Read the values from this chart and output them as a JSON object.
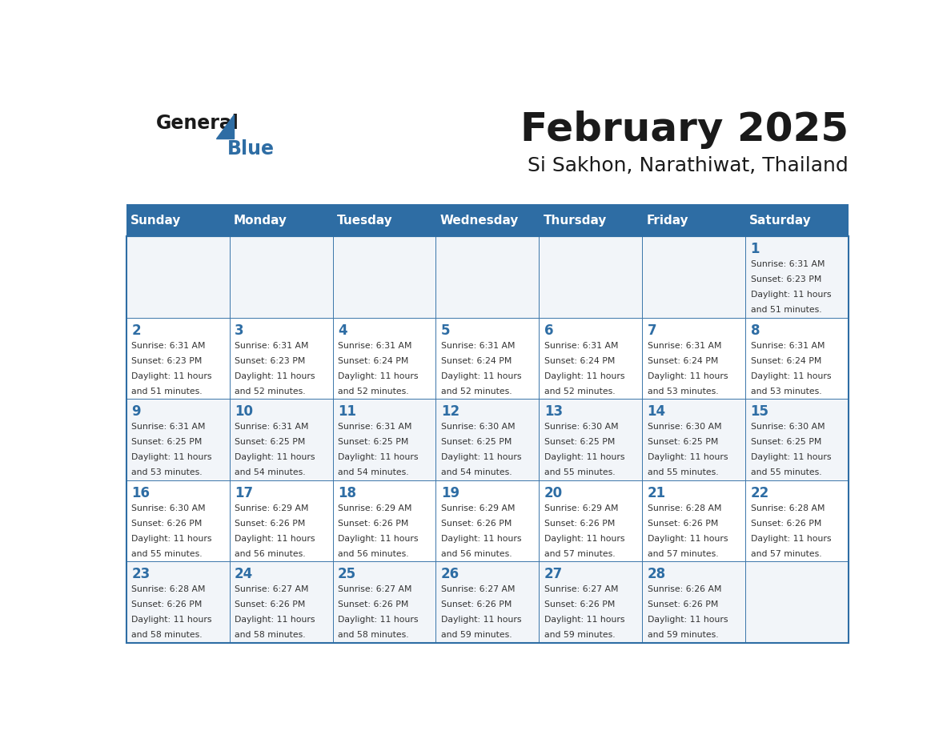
{
  "title": "February 2025",
  "subtitle": "Si Sakhon, Narathiwat, Thailand",
  "header_bg": "#2e6da4",
  "header_text": "#ffffff",
  "day_names": [
    "Sunday",
    "Monday",
    "Tuesday",
    "Wednesday",
    "Thursday",
    "Friday",
    "Saturday"
  ],
  "border_color": "#2e6da4",
  "title_color": "#1a1a1a",
  "subtitle_color": "#1a1a1a",
  "day_num_color": "#2e6da4",
  "cell_text_color": "#333333",
  "logo_general_color": "#1a1a1a",
  "logo_blue_color": "#2e6da4",
  "calendar": [
    [
      null,
      null,
      null,
      null,
      null,
      null,
      {
        "day": 1,
        "sunrise": "6:31 AM",
        "sunset": "6:23 PM",
        "daylight": "11 hours and 51 minutes."
      }
    ],
    [
      {
        "day": 2,
        "sunrise": "6:31 AM",
        "sunset": "6:23 PM",
        "daylight": "11 hours and 51 minutes."
      },
      {
        "day": 3,
        "sunrise": "6:31 AM",
        "sunset": "6:23 PM",
        "daylight": "11 hours and 52 minutes."
      },
      {
        "day": 4,
        "sunrise": "6:31 AM",
        "sunset": "6:24 PM",
        "daylight": "11 hours and 52 minutes."
      },
      {
        "day": 5,
        "sunrise": "6:31 AM",
        "sunset": "6:24 PM",
        "daylight": "11 hours and 52 minutes."
      },
      {
        "day": 6,
        "sunrise": "6:31 AM",
        "sunset": "6:24 PM",
        "daylight": "11 hours and 52 minutes."
      },
      {
        "day": 7,
        "sunrise": "6:31 AM",
        "sunset": "6:24 PM",
        "daylight": "11 hours and 53 minutes."
      },
      {
        "day": 8,
        "sunrise": "6:31 AM",
        "sunset": "6:24 PM",
        "daylight": "11 hours and 53 minutes."
      }
    ],
    [
      {
        "day": 9,
        "sunrise": "6:31 AM",
        "sunset": "6:25 PM",
        "daylight": "11 hours and 53 minutes."
      },
      {
        "day": 10,
        "sunrise": "6:31 AM",
        "sunset": "6:25 PM",
        "daylight": "11 hours and 54 minutes."
      },
      {
        "day": 11,
        "sunrise": "6:31 AM",
        "sunset": "6:25 PM",
        "daylight": "11 hours and 54 minutes."
      },
      {
        "day": 12,
        "sunrise": "6:30 AM",
        "sunset": "6:25 PM",
        "daylight": "11 hours and 54 minutes."
      },
      {
        "day": 13,
        "sunrise": "6:30 AM",
        "sunset": "6:25 PM",
        "daylight": "11 hours and 55 minutes."
      },
      {
        "day": 14,
        "sunrise": "6:30 AM",
        "sunset": "6:25 PM",
        "daylight": "11 hours and 55 minutes."
      },
      {
        "day": 15,
        "sunrise": "6:30 AM",
        "sunset": "6:25 PM",
        "daylight": "11 hours and 55 minutes."
      }
    ],
    [
      {
        "day": 16,
        "sunrise": "6:30 AM",
        "sunset": "6:26 PM",
        "daylight": "11 hours and 55 minutes."
      },
      {
        "day": 17,
        "sunrise": "6:29 AM",
        "sunset": "6:26 PM",
        "daylight": "11 hours and 56 minutes."
      },
      {
        "day": 18,
        "sunrise": "6:29 AM",
        "sunset": "6:26 PM",
        "daylight": "11 hours and 56 minutes."
      },
      {
        "day": 19,
        "sunrise": "6:29 AM",
        "sunset": "6:26 PM",
        "daylight": "11 hours and 56 minutes."
      },
      {
        "day": 20,
        "sunrise": "6:29 AM",
        "sunset": "6:26 PM",
        "daylight": "11 hours and 57 minutes."
      },
      {
        "day": 21,
        "sunrise": "6:28 AM",
        "sunset": "6:26 PM",
        "daylight": "11 hours and 57 minutes."
      },
      {
        "day": 22,
        "sunrise": "6:28 AM",
        "sunset": "6:26 PM",
        "daylight": "11 hours and 57 minutes."
      }
    ],
    [
      {
        "day": 23,
        "sunrise": "6:28 AM",
        "sunset": "6:26 PM",
        "daylight": "11 hours and 58 minutes."
      },
      {
        "day": 24,
        "sunrise": "6:27 AM",
        "sunset": "6:26 PM",
        "daylight": "11 hours and 58 minutes."
      },
      {
        "day": 25,
        "sunrise": "6:27 AM",
        "sunset": "6:26 PM",
        "daylight": "11 hours and 58 minutes."
      },
      {
        "day": 26,
        "sunrise": "6:27 AM",
        "sunset": "6:26 PM",
        "daylight": "11 hours and 59 minutes."
      },
      {
        "day": 27,
        "sunrise": "6:27 AM",
        "sunset": "6:26 PM",
        "daylight": "11 hours and 59 minutes."
      },
      {
        "day": 28,
        "sunrise": "6:26 AM",
        "sunset": "6:26 PM",
        "daylight": "11 hours and 59 minutes."
      },
      null
    ]
  ]
}
